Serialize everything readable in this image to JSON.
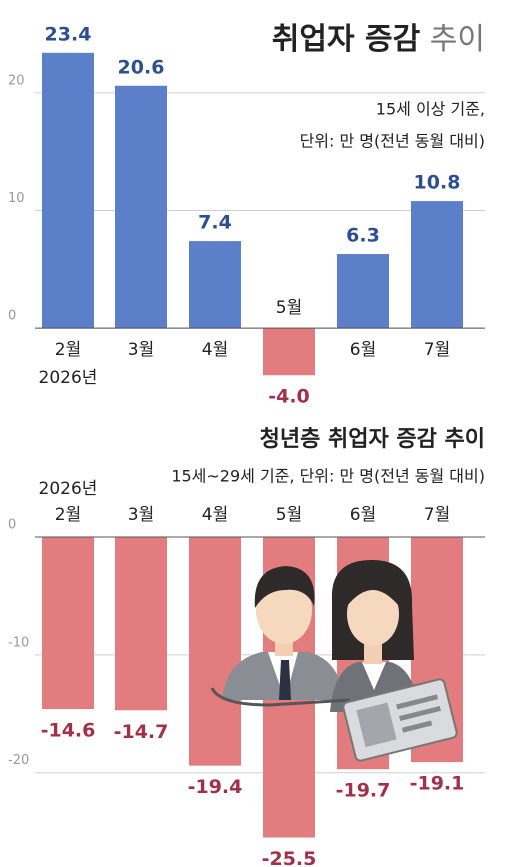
{
  "chart_data": [
    {
      "type": "bar",
      "title": "취업자 증감",
      "title_light": "추이",
      "subtitle": [
        "15세 이상 기준,",
        "단위: 만 명(전년 동월 대비)"
      ],
      "year": "2026년",
      "categories": [
        "2월",
        "3월",
        "4월",
        "5월",
        "6월",
        "7월"
      ],
      "values": [
        23.4,
        20.6,
        7.4,
        -4.0,
        6.3,
        10.8
      ],
      "value_labels": [
        "23.4",
        "20.6",
        "7.4",
        "-4.0",
        "6.3",
        "10.8"
      ],
      "colors": {
        "positive": "#5b7fc9",
        "negative": "#e27c7e"
      },
      "ylim": [
        -5,
        25
      ],
      "yticks": [
        0,
        10,
        20
      ],
      "grid": true
    },
    {
      "type": "bar",
      "title": "청년층 취업자 증감 추이",
      "subtitle": [
        "15세~29세 기준, 단위: 만 명(전년 동월 대비)"
      ],
      "year": "2026년",
      "categories": [
        "2월",
        "3월",
        "4월",
        "5월",
        "6월",
        "7월"
      ],
      "values": [
        -14.6,
        -14.7,
        -19.4,
        -25.5,
        -19.7,
        -19.1
      ],
      "value_labels": [
        "-14.6",
        "-14.7",
        "-19.4",
        "-25.5",
        "-19.7",
        "-19.1"
      ],
      "colors": {
        "positive": "#5b7fc9",
        "negative": "#e27c7e"
      },
      "ylim": [
        -28,
        0
      ],
      "yticks": [
        0,
        -10,
        -20
      ],
      "grid": true
    }
  ]
}
